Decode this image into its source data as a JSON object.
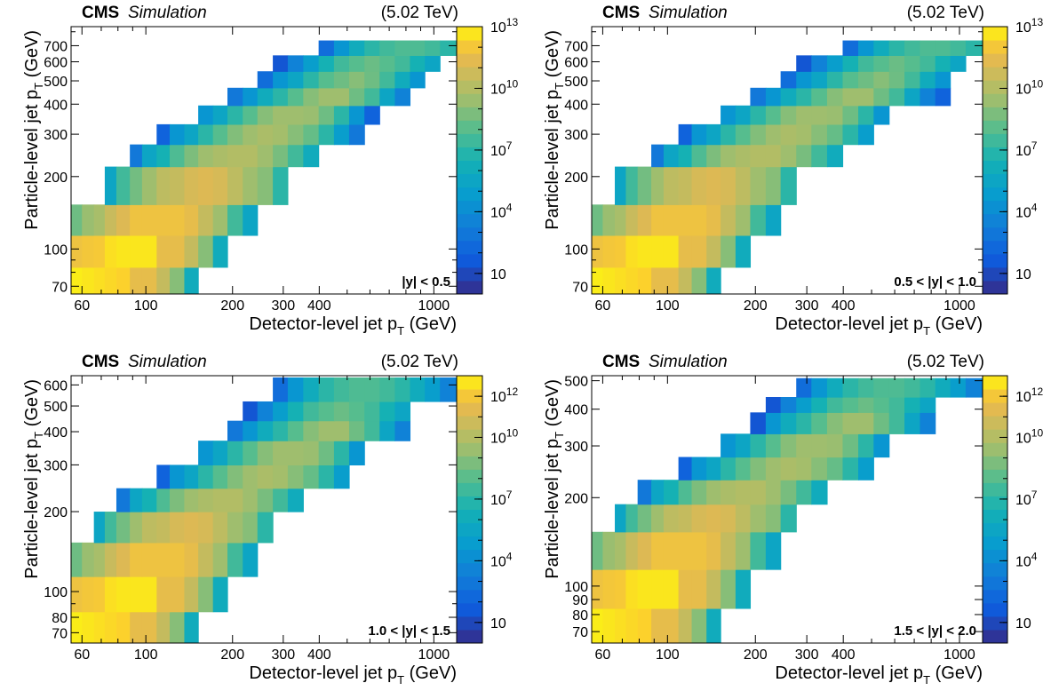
{
  "colors": {
    "frame": "#000000",
    "background": "#ffffff"
  },
  "chart_data": [
    {
      "type": "heatmap",
      "experiment": "CMS",
      "label": "Simulation",
      "energy": "(5.02 TeV)",
      "region": "|y| < 0.5",
      "xlabel": "Detector-level jet p",
      "xlabel_sub": "T",
      "xlabel_unit": " (GeV)",
      "ylabel": "Particle-level jet p",
      "ylabel_sub": "T",
      "ylabel_unit": " (GeV)",
      "x_scale": "log",
      "y_scale": "log",
      "xlim": [
        55,
        1200
      ],
      "ylim": [
        65,
        840
      ],
      "x_ticks": [
        60,
        100,
        200,
        300,
        400,
        1000
      ],
      "y_ticks": [
        70,
        100,
        200,
        300,
        400,
        500,
        600,
        700
      ],
      "z_scale": "log",
      "zlim": [
        1,
        10000000000000.0
      ],
      "z_ticks": [
        {
          "pre": "10",
          "exp": ""
        },
        {
          "pre": "10",
          "exp": "4"
        },
        {
          "pre": "10",
          "exp": "7"
        },
        {
          "pre": "10",
          "exp": "10"
        },
        {
          "pre": "10",
          "exp": "13"
        }
      ],
      "z_tick_values": [
        10,
        10000,
        10000000,
        10000000000,
        10000000000000
      ],
      "y_edges": [
        65,
        84,
        114,
        153,
        220,
        272,
        330,
        395,
        468,
        548,
        638,
        736,
        846
      ],
      "x_edges": [
        55,
        60,
        66,
        72,
        79,
        88,
        97,
        109,
        121,
        136,
        152,
        171,
        192,
        217,
        244,
        276,
        311,
        352,
        398,
        450,
        508,
        574,
        648,
        732,
        826,
        930,
        1050,
        1200
      ],
      "rows": [
        {
          "start": 0,
          "z": [
            12.8,
            12.7,
            12.6,
            12.5,
            12.4,
            11.5,
            11.5,
            10.5,
            9.0,
            6.0
          ]
        },
        {
          "start": 0,
          "z": [
            11.8,
            12.0,
            12.1,
            12.6,
            12.7,
            12.7,
            12.7,
            11.5,
            11.5,
            10.5,
            9.0,
            6.0
          ]
        },
        {
          "start": 0,
          "z": [
            8.5,
            9.4,
            9.7,
            10.6,
            11.2,
            11.8,
            11.8,
            11.8,
            11.8,
            11.5,
            10.5,
            9.5,
            7.5,
            5.5
          ]
        },
        {
          "start": 3,
          "z": [
            5.5,
            7.5,
            8.6,
            9.5,
            10.3,
            10.5,
            11.0,
            11.2,
            11.0,
            10.3,
            9.5,
            9.0,
            7.0
          ]
        },
        {
          "start": 5,
          "z": [
            3.0,
            5.5,
            6.5,
            7.8,
            8.8,
            9.5,
            9.8,
            10.0,
            10.0,
            9.5,
            8.7,
            7.5,
            6.0
          ]
        },
        {
          "start": 7,
          "z": [
            2.0,
            4.5,
            5.5,
            7.0,
            8.0,
            8.9,
            9.5,
            9.8,
            9.6,
            9.0,
            8.3,
            7.0,
            5.0,
            3.0
          ]
        },
        {
          "start": 10,
          "z": [
            4.5,
            5.5,
            7.0,
            8.0,
            9.0,
            9.5,
            9.5,
            9.4,
            8.5,
            7.0,
            4.5,
            2.0
          ]
        },
        {
          "start": 12,
          "z": [
            3.0,
            4.5,
            6.0,
            7.0,
            8.0,
            9.0,
            9.5,
            9.5,
            8.5,
            7.5,
            5.5,
            3.5
          ]
        },
        {
          "start": 14,
          "z": [
            2.5,
            4.5,
            5.5,
            7.0,
            8.0,
            8.5,
            9.0,
            8.5,
            7.5,
            6.0,
            4.5
          ]
        },
        {
          "start": 15,
          "z": [
            1.5,
            3.5,
            5.0,
            6.5,
            7.5,
            8.0,
            8.4,
            8.0,
            7.5,
            6.5,
            5.5
          ]
        },
        {
          "start": 18,
          "z": [
            2.5,
            4.5,
            6.0,
            7.0,
            7.5,
            7.8,
            7.8,
            7.5,
            7.0,
            6.0,
            4.0
          ]
        }
      ]
    },
    {
      "type": "heatmap",
      "experiment": "CMS",
      "label": "Simulation",
      "energy": "(5.02 TeV)",
      "region": "0.5 < |y| < 1.0",
      "xlabel": "Detector-level jet p",
      "xlabel_sub": "T",
      "xlabel_unit": " (GeV)",
      "ylabel": "Particle-level jet p",
      "ylabel_sub": "T",
      "ylabel_unit": " (GeV)",
      "x_scale": "log",
      "y_scale": "log",
      "xlim": [
        55,
        1200
      ],
      "ylim": [
        65,
        840
      ],
      "x_ticks": [
        60,
        100,
        200,
        300,
        400,
        1000
      ],
      "y_ticks": [
        70,
        100,
        200,
        300,
        400,
        500,
        600,
        700
      ],
      "z_scale": "log",
      "zlim": [
        1,
        10000000000000.0
      ],
      "z_ticks": [
        {
          "pre": "10",
          "exp": ""
        },
        {
          "pre": "10",
          "exp": "4"
        },
        {
          "pre": "10",
          "exp": "7"
        },
        {
          "pre": "10",
          "exp": "10"
        },
        {
          "pre": "10",
          "exp": "13"
        }
      ],
      "z_tick_values": [
        10,
        10000,
        10000000,
        10000000000,
        10000000000000
      ],
      "y_edges": [
        65,
        84,
        114,
        153,
        220,
        272,
        330,
        395,
        468,
        548,
        638,
        736,
        846
      ],
      "x_edges": [
        55,
        60,
        66,
        72,
        79,
        88,
        97,
        109,
        121,
        136,
        152,
        171,
        192,
        217,
        244,
        276,
        311,
        352,
        398,
        450,
        508,
        574,
        648,
        732,
        826,
        930,
        1050,
        1200
      ],
      "rows": [
        {
          "start": 0,
          "z": [
            12.8,
            12.7,
            12.6,
            12.5,
            12.4,
            11.5,
            11.5,
            10.5,
            9.0,
            6.0
          ]
        },
        {
          "start": 0,
          "z": [
            11.8,
            12.0,
            12.1,
            12.6,
            12.7,
            12.7,
            12.7,
            11.5,
            11.5,
            10.5,
            9.0,
            6.0
          ]
        },
        {
          "start": 0,
          "z": [
            8.5,
            9.4,
            9.7,
            10.6,
            11.2,
            11.8,
            11.8,
            11.8,
            11.8,
            11.5,
            10.5,
            9.5,
            7.5,
            5.5
          ]
        },
        {
          "start": 2,
          "z": [
            5.5,
            7.5,
            8.6,
            9.5,
            10.3,
            10.5,
            11.0,
            11.2,
            11.0,
            10.3,
            9.5,
            9.0,
            7.0
          ]
        },
        {
          "start": 5,
          "z": [
            3.0,
            5.5,
            6.5,
            7.8,
            8.8,
            9.5,
            9.8,
            10.0,
            10.0,
            9.5,
            8.7,
            7.5,
            6.0
          ]
        },
        {
          "start": 7,
          "z": [
            2.0,
            4.5,
            5.5,
            7.0,
            8.0,
            8.9,
            9.5,
            9.8,
            9.6,
            9.0,
            8.3,
            7.0,
            5.0
          ]
        },
        {
          "start": 10,
          "z": [
            4.5,
            5.5,
            7.0,
            8.0,
            9.0,
            9.5,
            9.5,
            9.4,
            8.5,
            7.0,
            4.5
          ]
        },
        {
          "start": 12,
          "z": [
            3.0,
            4.5,
            6.0,
            7.0,
            8.0,
            9.0,
            9.5,
            9.5,
            8.5,
            7.5,
            5.5,
            3.5,
            2.0
          ]
        },
        {
          "start": 14,
          "z": [
            2.5,
            4.5,
            5.5,
            7.0,
            8.0,
            8.5,
            9.0,
            8.5,
            7.5,
            6.0,
            4.5
          ]
        },
        {
          "start": 15,
          "z": [
            1.5,
            3.5,
            5.0,
            6.5,
            7.5,
            8.0,
            8.4,
            8.0,
            7.5,
            6.5,
            5.5
          ]
        },
        {
          "start": 18,
          "z": [
            2.5,
            4.5,
            6.0,
            7.0,
            7.5,
            7.8,
            7.8,
            7.5,
            7.0,
            6.0,
            5.0,
            3.5
          ]
        }
      ]
    },
    {
      "type": "heatmap",
      "experiment": "CMS",
      "label": "Simulation",
      "energy": "(5.02 TeV)",
      "region": "1.0 < |y| < 1.5",
      "xlabel": "Detector-level jet p",
      "xlabel_sub": "T",
      "xlabel_unit": " (GeV)",
      "ylabel": "Particle-level jet p",
      "ylabel_sub": "T",
      "ylabel_unit": " (GeV)",
      "x_scale": "log",
      "y_scale": "log",
      "xlim": [
        55,
        1200
      ],
      "ylim": [
        64,
        650
      ],
      "x_ticks": [
        60,
        100,
        200,
        300,
        400,
        1000
      ],
      "y_ticks": [
        70,
        80,
        100,
        200,
        300,
        400,
        500,
        600
      ],
      "z_scale": "log",
      "zlim": [
        1,
        10000000000000.0
      ],
      "z_ticks": [
        {
          "pre": "10",
          "exp": ""
        },
        {
          "pre": "10",
          "exp": "4"
        },
        {
          "pre": "10",
          "exp": "7"
        },
        {
          "pre": "10",
          "exp": "10"
        },
        {
          "pre": "10",
          "exp": "12"
        }
      ],
      "z_tick_values": [
        10,
        10000,
        10000000,
        10000000000,
        1000000000000
      ],
      "y_edges": [
        64,
        84,
        114,
        153,
        200,
        245,
        300,
        370,
        440,
        520,
        640
      ],
      "x_edges": [
        55,
        60,
        66,
        72,
        79,
        88,
        97,
        109,
        121,
        136,
        152,
        171,
        192,
        217,
        244,
        276,
        311,
        352,
        398,
        450,
        508,
        574,
        648,
        732,
        826,
        930,
        1050,
        1200
      ],
      "rows": [
        {
          "start": 0,
          "z": [
            12.8,
            12.7,
            12.6,
            12.5,
            12.4,
            11.5,
            11.5,
            10.5,
            9.0,
            6.0
          ]
        },
        {
          "start": 0,
          "z": [
            11.8,
            12.0,
            12.1,
            12.6,
            12.7,
            12.7,
            12.7,
            11.5,
            11.5,
            10.5,
            9.0,
            6.0
          ]
        },
        {
          "start": 0,
          "z": [
            8.5,
            9.4,
            9.7,
            10.6,
            11.2,
            11.8,
            11.8,
            11.8,
            11.8,
            11.5,
            10.5,
            9.5,
            7.5,
            5.5
          ]
        },
        {
          "start": 2,
          "z": [
            5.5,
            7.5,
            8.6,
            9.5,
            10.3,
            10.5,
            11.0,
            11.2,
            11.0,
            10.3,
            9.5,
            9.0,
            7.0
          ]
        },
        {
          "start": 4,
          "z": [
            3.0,
            5.5,
            6.5,
            7.8,
            8.8,
            9.5,
            9.8,
            10.0,
            10.0,
            9.5,
            8.7,
            7.5,
            6.0
          ]
        },
        {
          "start": 7,
          "z": [
            2.0,
            4.5,
            5.5,
            7.0,
            8.0,
            8.9,
            9.5,
            9.8,
            9.6,
            9.0,
            8.3,
            7.0,
            5.0
          ]
        },
        {
          "start": 10,
          "z": [
            4.5,
            5.5,
            7.0,
            8.0,
            9.0,
            9.5,
            9.5,
            9.4,
            8.5,
            7.0,
            4.5
          ]
        },
        {
          "start": 12,
          "z": [
            3.0,
            4.5,
            6.0,
            7.0,
            8.0,
            9.0,
            9.5,
            9.5,
            8.5,
            7.5,
            5.5,
            3.5
          ]
        },
        {
          "start": 13,
          "z": [
            1.5,
            3.5,
            5.0,
            6.5,
            7.5,
            8.0,
            8.4,
            8.0,
            7.5,
            6.5,
            5.5
          ]
        },
        {
          "start": 15,
          "z": [
            2.5,
            4.5,
            6.0,
            7.0,
            7.5,
            7.8,
            7.8,
            7.5,
            7.0,
            6.0,
            5.0,
            3.5,
            2.0
          ]
        }
      ]
    },
    {
      "type": "heatmap",
      "experiment": "CMS",
      "label": "Simulation",
      "energy": "(5.02 TeV)",
      "region": "1.5 < |y| < 2.0",
      "xlabel": "Detector-level jet p",
      "xlabel_sub": "T",
      "xlabel_unit": " (GeV)",
      "ylabel": "Particle-level jet p",
      "ylabel_sub": "T",
      "ylabel_unit": " (GeV)",
      "x_scale": "log",
      "y_scale": "log",
      "xlim": [
        55,
        1200
      ],
      "ylim": [
        64,
        520
      ],
      "x_ticks": [
        60,
        100,
        200,
        300,
        400,
        1000
      ],
      "y_ticks": [
        70,
        80,
        90,
        100,
        200,
        300,
        400,
        500
      ],
      "z_scale": "log",
      "zlim": [
        1,
        10000000000000.0
      ],
      "z_ticks": [
        {
          "pre": "10",
          "exp": ""
        },
        {
          "pre": "10",
          "exp": "4"
        },
        {
          "pre": "10",
          "exp": "7"
        },
        {
          "pre": "10",
          "exp": "10"
        },
        {
          "pre": "10",
          "exp": "12"
        }
      ],
      "z_tick_values": [
        10,
        10000,
        10000000,
        10000000000,
        1000000000000
      ],
      "y_edges": [
        64,
        84,
        114,
        153,
        190,
        230,
        275,
        330,
        390,
        440,
        510
      ],
      "x_edges": [
        55,
        60,
        66,
        72,
        79,
        88,
        97,
        109,
        121,
        136,
        152,
        171,
        192,
        217,
        244,
        276,
        311,
        352,
        398,
        450,
        508,
        574,
        648,
        732,
        826,
        930,
        1050,
        1200
      ],
      "rows": [
        {
          "start": 0,
          "z": [
            12.8,
            12.7,
            12.6,
            12.5,
            12.4,
            11.5,
            11.5,
            10.5,
            9.0,
            6.0
          ]
        },
        {
          "start": 0,
          "z": [
            11.8,
            12.0,
            12.1,
            12.6,
            12.7,
            12.7,
            12.7,
            11.5,
            11.5,
            10.5,
            9.0,
            6.0
          ]
        },
        {
          "start": 0,
          "z": [
            8.5,
            9.4,
            9.7,
            10.6,
            11.2,
            11.8,
            11.8,
            11.8,
            11.8,
            11.5,
            10.5,
            9.5,
            7.5,
            5.5
          ]
        },
        {
          "start": 2,
          "z": [
            5.5,
            7.5,
            8.6,
            9.5,
            10.3,
            10.5,
            11.0,
            11.2,
            11.0,
            10.3,
            9.5,
            9.0,
            7.0
          ]
        },
        {
          "start": 4,
          "z": [
            3.0,
            5.5,
            6.5,
            7.8,
            8.8,
            9.5,
            9.8,
            10.0,
            10.0,
            9.5,
            8.7,
            7.5,
            6.0
          ]
        },
        {
          "start": 7,
          "z": [
            2.0,
            4.5,
            5.5,
            7.0,
            8.0,
            8.9,
            9.5,
            9.8,
            9.6,
            9.0,
            8.3,
            7.0,
            5.0
          ]
        },
        {
          "start": 10,
          "z": [
            4.5,
            5.5,
            7.0,
            8.0,
            9.0,
            9.5,
            9.5,
            9.4,
            8.5,
            7.0,
            4.5
          ]
        },
        {
          "start": 12,
          "z": [
            1.5,
            4.5,
            6.0,
            7.0,
            8.0,
            9.0,
            9.5,
            9.5,
            8.5,
            7.5,
            5.5,
            3.5
          ]
        },
        {
          "start": 13,
          "z": [
            1.5,
            3.5,
            5.0,
            6.5,
            7.5,
            8.0,
            8.4,
            8.0,
            7.5,
            6.5,
            5.5
          ]
        },
        {
          "start": 15,
          "z": [
            2.5,
            4.5,
            6.0,
            7.0,
            7.5,
            7.8,
            7.8,
            7.5,
            7.0,
            6.0,
            5.0,
            3.5
          ]
        }
      ]
    }
  ]
}
